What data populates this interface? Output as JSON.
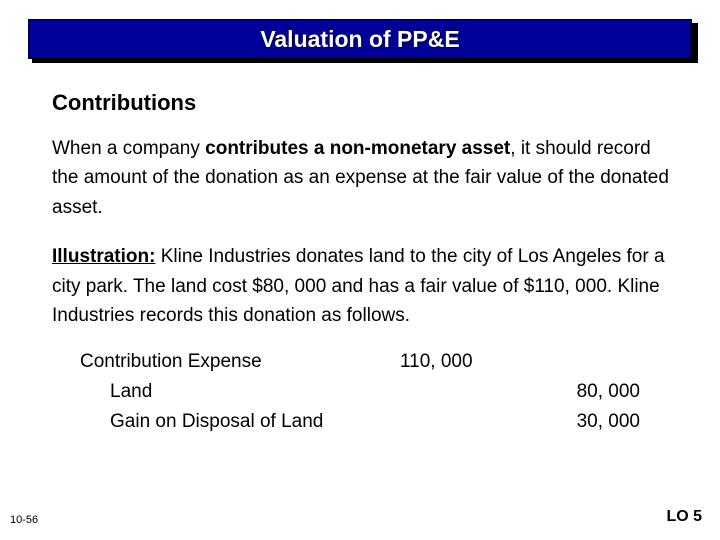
{
  "titleBar": {
    "text": "Valuation of PP&E",
    "background": "#000099",
    "shadow": "#000000",
    "textColor": "#ffffff"
  },
  "heading": "Contributions",
  "para1": {
    "lead": "When a company ",
    "bold": "contributes a non-monetary asset",
    "tail": ", it should record the amount of the donation as an expense at the fair value of the donated asset."
  },
  "para2": {
    "label": "Illustration:",
    "text": "  Kline Industries donates land to the city of Los Angeles for a city park. The land cost $80, 000 and has a fair value of $110, 000. Kline Industries records this donation as follows."
  },
  "journal": {
    "rows": [
      {
        "account": "Contribution Expense",
        "indent": 0,
        "debit": "110, 000",
        "credit": ""
      },
      {
        "account": "Land",
        "indent": 1,
        "debit": "",
        "credit": "80, 000"
      },
      {
        "account": "Gain on Disposal of Land",
        "indent": 1,
        "debit": "",
        "credit": "30, 000"
      }
    ]
  },
  "slideNumber": "10-56",
  "loLabel": "LO 5"
}
